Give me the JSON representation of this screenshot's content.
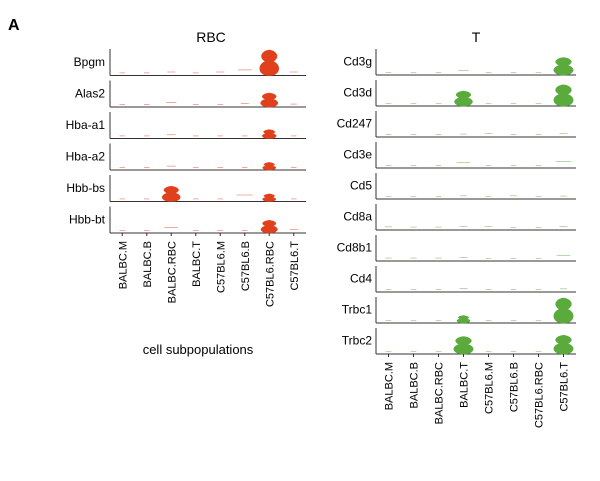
{
  "panel_label": "A",
  "chart_data": [
    {
      "type": "violin",
      "title": "RBC",
      "xlabel": "cell subpopulations",
      "categories": [
        "BALBC.M",
        "BALBC.B",
        "BALBC.RBC",
        "BALBC.T",
        "C57BL6.M",
        "C57BL6.B",
        "C57BL6.RBC",
        "C57BL6.T"
      ],
      "color": "#e0401c",
      "genes": [
        {
          "name": "Bpgm",
          "values": [
            0.02,
            0.02,
            0.05,
            0.02,
            0.05,
            0.12,
            1.0,
            0.05
          ]
        },
        {
          "name": "Alas2",
          "values": [
            0.02,
            0.02,
            0.08,
            0.02,
            0.02,
            0.05,
            0.55,
            0.03
          ]
        },
        {
          "name": "Hba-a1",
          "values": [
            0.02,
            0.02,
            0.06,
            0.02,
            0.02,
            0.02,
            0.35,
            0.02
          ]
        },
        {
          "name": "Hba-a2",
          "values": [
            0.02,
            0.02,
            0.06,
            0.02,
            0.02,
            0.02,
            0.3,
            0.02
          ]
        },
        {
          "name": "Hbb-bs",
          "values": [
            0.02,
            0.02,
            0.6,
            0.02,
            0.02,
            0.15,
            0.3,
            0.02
          ]
        },
        {
          "name": "Hbb-bt",
          "values": [
            0.02,
            0.02,
            0.12,
            0.02,
            0.02,
            0.02,
            0.5,
            0.05
          ]
        }
      ]
    },
    {
      "type": "violin",
      "title": "T",
      "xlabel": "",
      "categories": [
        "BALBC.M",
        "BALBC.B",
        "BALBC.RBC",
        "BALBC.T",
        "C57BL6.M",
        "C57BL6.B",
        "C57BL6.RBC",
        "C57BL6.T"
      ],
      "color": "#5aab3c",
      "genes": [
        {
          "name": "Cd3g",
          "values": [
            0.02,
            0.02,
            0.02,
            0.08,
            0.02,
            0.02,
            0.02,
            0.7
          ]
        },
        {
          "name": "Cd3d",
          "values": [
            0.02,
            0.02,
            0.02,
            0.6,
            0.02,
            0.02,
            0.02,
            0.85
          ]
        },
        {
          "name": "Cd247",
          "values": [
            0.02,
            0.02,
            0.02,
            0.03,
            0.05,
            0.02,
            0.02,
            0.05
          ]
        },
        {
          "name": "Cd3e",
          "values": [
            0.02,
            0.02,
            0.02,
            0.12,
            0.02,
            0.02,
            0.02,
            0.15
          ]
        },
        {
          "name": "Cd5",
          "values": [
            0.02,
            0.02,
            0.02,
            0.04,
            0.02,
            0.04,
            0.02,
            0.03
          ]
        },
        {
          "name": "Cd8a",
          "values": [
            0.04,
            0.03,
            0.03,
            0.05,
            0.05,
            0.02,
            0.02,
            0.05
          ]
        },
        {
          "name": "Cd8b1",
          "values": [
            0.03,
            0.03,
            0.03,
            0.05,
            0.02,
            0.02,
            0.02,
            0.12
          ]
        },
        {
          "name": "Cd4",
          "values": [
            0.02,
            0.02,
            0.02,
            0.05,
            0.02,
            0.02,
            0.02,
            0.04
          ]
        },
        {
          "name": "Trbc1",
          "values": [
            0.02,
            0.02,
            0.02,
            0.3,
            0.02,
            0.02,
            0.02,
            1.0
          ]
        },
        {
          "name": "Trbc2",
          "values": [
            0.02,
            0.02,
            0.02,
            0.7,
            0.02,
            0.02,
            0.02,
            0.75
          ]
        }
      ]
    }
  ]
}
